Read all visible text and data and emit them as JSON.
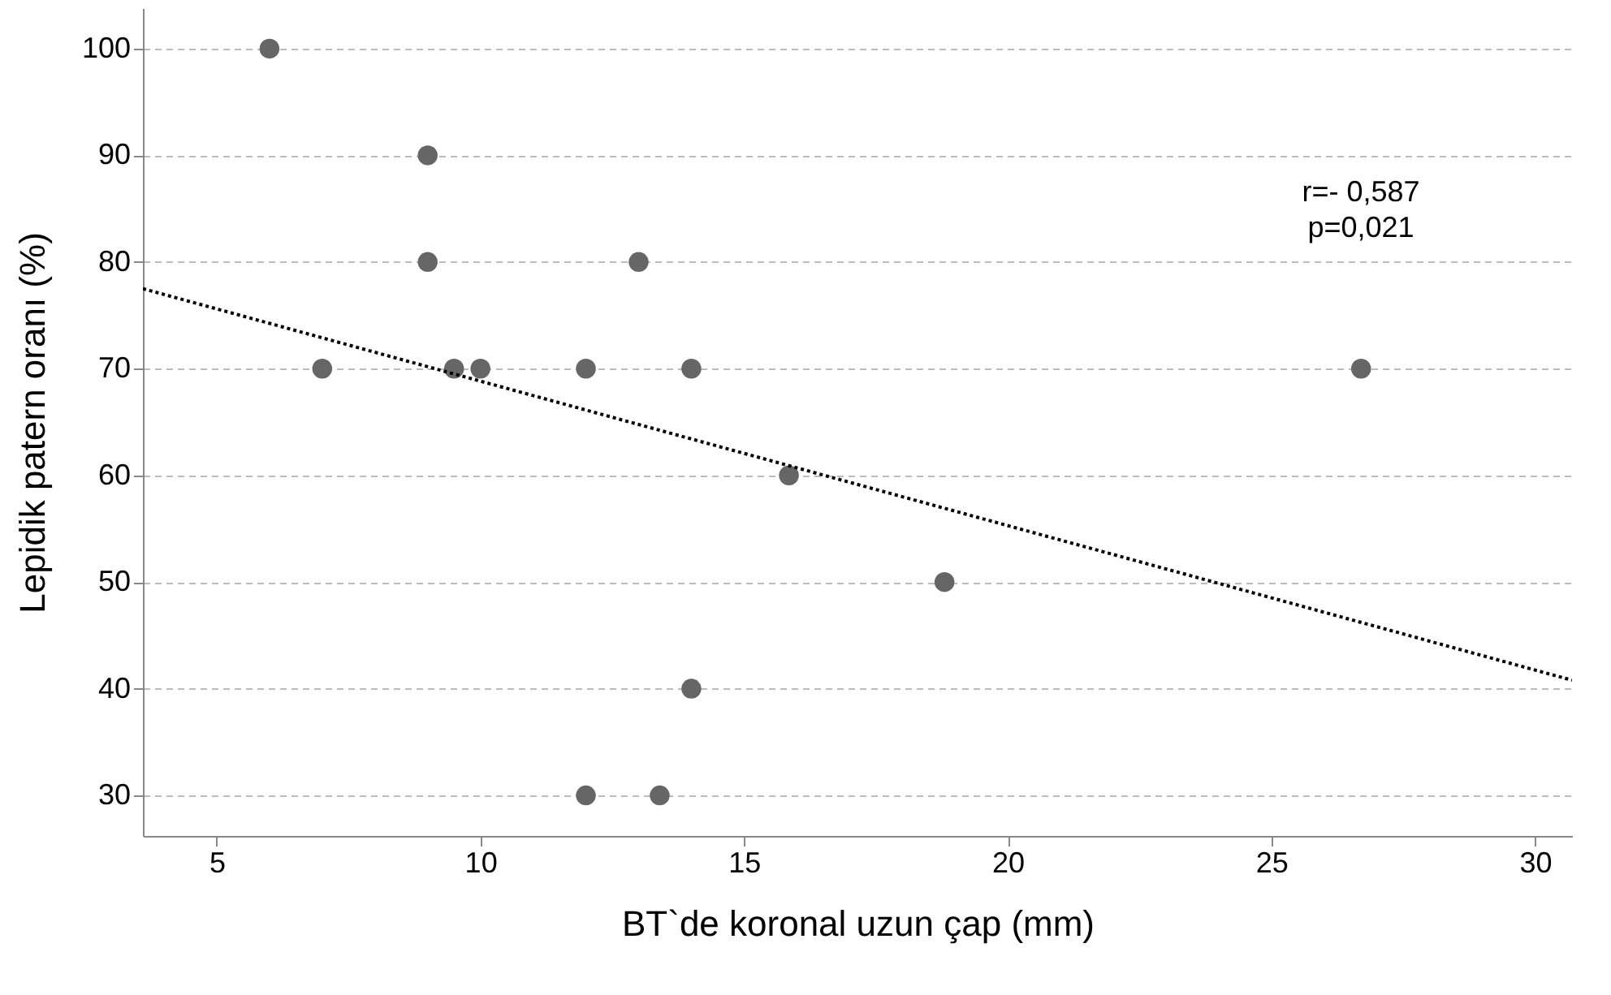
{
  "chart_data": {
    "type": "scatter",
    "xlabel": "BT`de koronal uzun çap (mm)",
    "ylabel": "Lepidik patern oranı (%)",
    "xlim": [
      3.6,
      30.7
    ],
    "xticks": [
      5,
      10,
      15,
      20,
      25,
      30
    ],
    "ylim": [
      26.2,
      103.8
    ],
    "yticks": [
      30,
      40,
      50,
      60,
      70,
      80,
      90,
      100
    ],
    "grid": "y",
    "annotations": [
      "r=- 0,587",
      "p=0,021"
    ],
    "series": [
      {
        "color": "#666666",
        "marker": "circle",
        "x": [
          6,
          9,
          9,
          13,
          7,
          9.5,
          10,
          12,
          14,
          26.7,
          15.85,
          18.8,
          14,
          12,
          13.4
        ],
        "values": [
          100,
          90,
          80,
          80,
          70,
          70,
          70,
          70,
          70,
          70,
          60,
          50,
          40,
          30,
          30
        ]
      },
      {
        "type": "line",
        "color": "#000000",
        "line_style": "dotted",
        "x": [
          3.6,
          30.7
        ],
        "values": [
          77.5,
          40.8
        ]
      }
    ]
  }
}
